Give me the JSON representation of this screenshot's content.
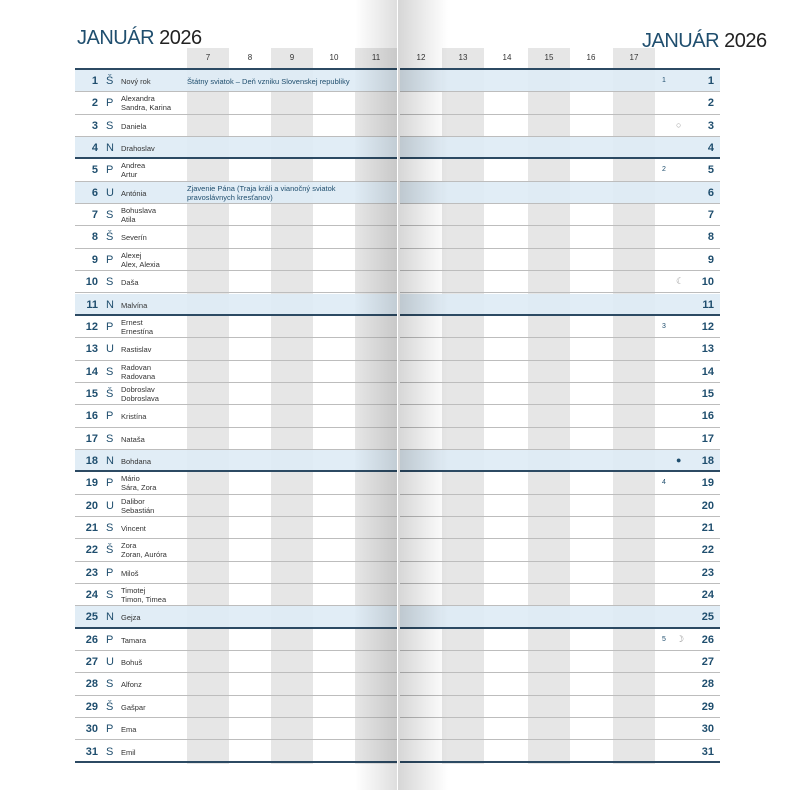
{
  "left_page": {
    "month": "JANUÁR",
    "year": "2026",
    "hours": [
      "7",
      "8",
      "9",
      "10",
      "11"
    ]
  },
  "right_page": {
    "month": "JANUÁR",
    "year": "2026",
    "hours": [
      "12",
      "13",
      "14",
      "15",
      "16",
      "17"
    ]
  },
  "colors": {
    "accent": "#1f4e6e",
    "band": "#deebf5",
    "hour_column_gray": "#e6e6e6"
  },
  "days": [
    {
      "day": "1",
      "dow": "Š",
      "names": [
        "Nový rok"
      ],
      "holiday": "Štátny sviatok – Deň vzniku Slovenskej republiky",
      "week": "1",
      "band": true
    },
    {
      "day": "2",
      "dow": "P",
      "names": [
        "Alexandra",
        "Sandra, Karina"
      ]
    },
    {
      "day": "3",
      "dow": "S",
      "names": [
        "Daniela"
      ],
      "moon": "full-moon-icon",
      "moon_glyph": "○"
    },
    {
      "day": "4",
      "dow": "N",
      "names": [
        "Drahoslav"
      ],
      "band": true,
      "week_end": true
    },
    {
      "day": "5",
      "dow": "P",
      "names": [
        "Andrea",
        "Artur"
      ],
      "week": "2"
    },
    {
      "day": "6",
      "dow": "U",
      "names": [
        "Antónia"
      ],
      "holiday": "Zjavenie Pána (Traja králi a vianočný sviatok pravoslávnych kresťanov)",
      "band": true
    },
    {
      "day": "7",
      "dow": "S",
      "names": [
        "Bohuslava",
        "Atila"
      ]
    },
    {
      "day": "8",
      "dow": "Š",
      "names": [
        "Severín"
      ]
    },
    {
      "day": "9",
      "dow": "P",
      "names": [
        "Alexej",
        "Alex, Alexia"
      ]
    },
    {
      "day": "10",
      "dow": "S",
      "names": [
        "Daša"
      ],
      "moon": "last-quarter-moon-icon",
      "moon_glyph": "☾"
    },
    {
      "day": "11",
      "dow": "N",
      "names": [
        "Malvína"
      ],
      "band": true,
      "week_end": true
    },
    {
      "day": "12",
      "dow": "P",
      "names": [
        "Ernest",
        "Ernestína"
      ],
      "week": "3"
    },
    {
      "day": "13",
      "dow": "U",
      "names": [
        "Rastislav"
      ]
    },
    {
      "day": "14",
      "dow": "S",
      "names": [
        "Radovan",
        "Radovana"
      ]
    },
    {
      "day": "15",
      "dow": "Š",
      "names": [
        "Dobroslav",
        "Dobroslava"
      ]
    },
    {
      "day": "16",
      "dow": "P",
      "names": [
        "Kristína"
      ]
    },
    {
      "day": "17",
      "dow": "S",
      "names": [
        "Nataša"
      ]
    },
    {
      "day": "18",
      "dow": "N",
      "names": [
        "Bohdana"
      ],
      "band": true,
      "week_end": true,
      "moon": "new-moon-icon",
      "moon_glyph": "●"
    },
    {
      "day": "19",
      "dow": "P",
      "names": [
        "Mário",
        "Sára, Zora"
      ],
      "week": "4"
    },
    {
      "day": "20",
      "dow": "U",
      "names": [
        "Dalibor",
        "Sebastián"
      ]
    },
    {
      "day": "21",
      "dow": "S",
      "names": [
        "Vincent"
      ]
    },
    {
      "day": "22",
      "dow": "Š",
      "names": [
        "Zora",
        "Zoran, Auróra"
      ]
    },
    {
      "day": "23",
      "dow": "P",
      "names": [
        "Miloš"
      ]
    },
    {
      "day": "24",
      "dow": "S",
      "names": [
        "Timotej",
        "Timon, Timea"
      ]
    },
    {
      "day": "25",
      "dow": "N",
      "names": [
        "Gejza"
      ],
      "band": true,
      "week_end": true
    },
    {
      "day": "26",
      "dow": "P",
      "names": [
        "Tamara"
      ],
      "week": "5",
      "moon": "first-quarter-moon-icon",
      "moon_glyph": "☽"
    },
    {
      "day": "27",
      "dow": "U",
      "names": [
        "Bohuš"
      ]
    },
    {
      "day": "28",
      "dow": "S",
      "names": [
        "Alfonz"
      ]
    },
    {
      "day": "29",
      "dow": "Š",
      "names": [
        "Gašpar"
      ]
    },
    {
      "day": "30",
      "dow": "P",
      "names": [
        "Ema"
      ]
    },
    {
      "day": "31",
      "dow": "S",
      "names": [
        "Emil"
      ],
      "week_end": true
    }
  ]
}
